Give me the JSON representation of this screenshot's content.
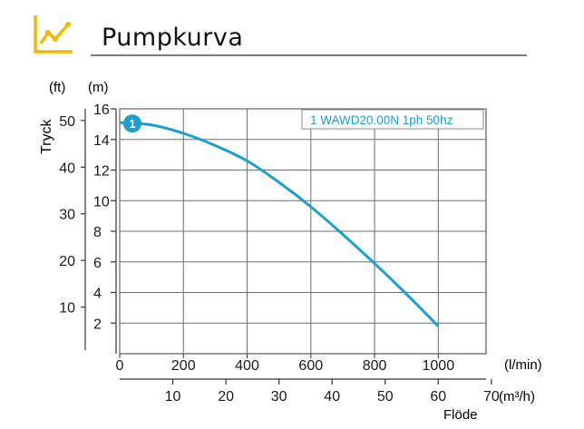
{
  "header": {
    "title": "Pumpkurva",
    "icon": "line-chart-icon",
    "accent_color": "#f5b800"
  },
  "chart_data": {
    "type": "line",
    "ylabel": "Tryck",
    "xlabel": "Flöde",
    "y_unit_m": "(m)",
    "y_unit_ft": "(ft)",
    "x_unit_lmin": "(l/min)",
    "x_unit_m3h": "(m³/h)",
    "xlim": [
      0,
      1150
    ],
    "ylim": [
      0,
      16
    ],
    "grid": true,
    "x_ticks_lmin": [
      "0",
      "200",
      "400",
      "600",
      "800",
      "1000"
    ],
    "x_tick_values_lmin": [
      0,
      200,
      400,
      600,
      800,
      1000
    ],
    "x_ticks_m3h": [
      "10",
      "20",
      "30",
      "40",
      "50",
      "60",
      "70"
    ],
    "x_tick_values_m3h": [
      10,
      20,
      30,
      40,
      50,
      60,
      70
    ],
    "y_ticks_m": [
      "2",
      "4",
      "6",
      "8",
      "10",
      "12",
      "14",
      "16"
    ],
    "y_tick_values_m": [
      2,
      4,
      6,
      8,
      10,
      12,
      14,
      16
    ],
    "y_ticks_ft": [
      "10",
      "20",
      "30",
      "40",
      "50"
    ],
    "y_tick_values_ft": [
      10,
      20,
      30,
      40,
      50
    ],
    "series": [
      {
        "name": "1 WAWD20.00N 1ph 50hz",
        "marker_label": "1",
        "color": "#1a9fcf",
        "x": [
          0,
          100,
          200,
          300,
          400,
          500,
          600,
          700,
          800,
          900,
          1000
        ],
        "y": [
          15.1,
          14.95,
          14.4,
          13.6,
          12.6,
          11.2,
          9.6,
          7.8,
          5.9,
          3.9,
          1.8
        ]
      }
    ],
    "legend_position": "top-right"
  }
}
